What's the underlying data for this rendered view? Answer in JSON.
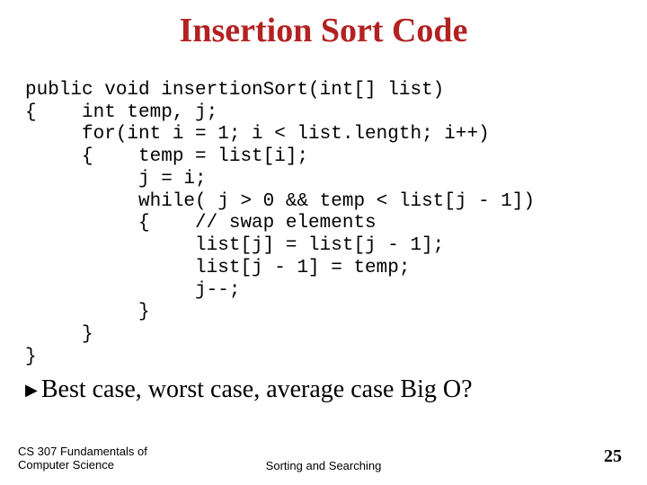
{
  "title": {
    "text": "Insertion Sort Code",
    "color": "#b22222",
    "fontsize": 38
  },
  "code": {
    "lines": [
      "public void insertionSort(int[] list)",
      "{    int temp, j;",
      "     for(int i = 1; i < list.length; i++)",
      "     {    temp = list[i];",
      "          j = i;",
      "          while( j > 0 && temp < list[j - 1])",
      "          {    // swap elements",
      "               list[j] = list[j - 1];",
      "               list[j - 1] = temp;",
      "               j--;",
      "          }",
      "     }",
      "}"
    ],
    "fontfamily": "Courier New",
    "fontsize": 21
  },
  "bullet": {
    "marker": "▶",
    "text": "Best case, worst case, average case Big O?",
    "fontsize": 28
  },
  "footer": {
    "left_line1": "CS 307 Fundamentals of",
    "left_line2": "Computer Science",
    "center": "Sorting and Searching",
    "page": "25"
  }
}
